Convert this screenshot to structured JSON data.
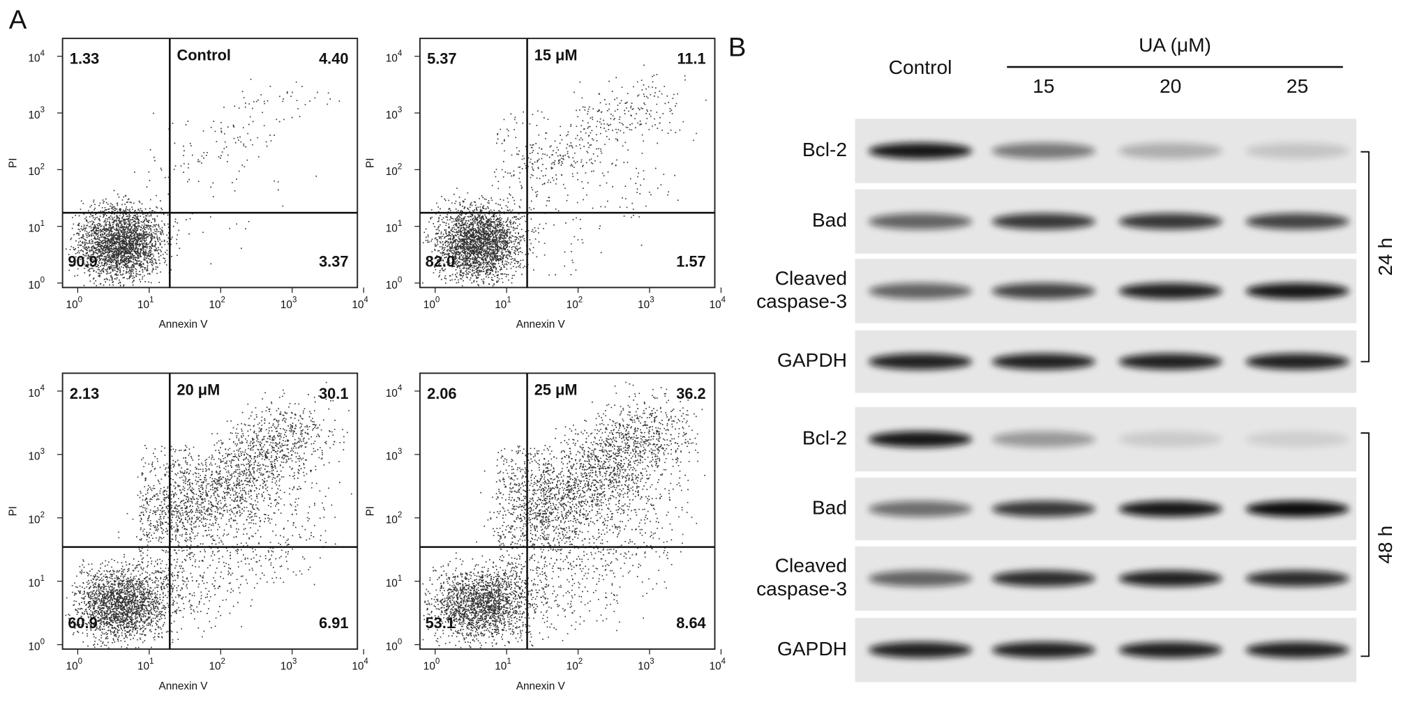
{
  "panel_a": {
    "label": "A",
    "x_label": "Annexin V",
    "y_label": "PI",
    "tick_base": "10",
    "tick_exponents": [
      "0",
      "1",
      "2",
      "3",
      "4"
    ],
    "plots": [
      {
        "title": "Control",
        "upper_left": "1.33",
        "upper_right": "4.40",
        "lower_left": "90.9",
        "lower_right": "3.37"
      },
      {
        "title": "15 μM",
        "upper_left": "5.37",
        "upper_right": "11.1",
        "lower_left": "82.0",
        "lower_right": "1.57"
      },
      {
        "title": "20 μM",
        "upper_left": "2.13",
        "upper_right": "30.1",
        "lower_left": "60.9",
        "lower_right": "6.91"
      },
      {
        "title": "25 μM",
        "upper_left": "2.06",
        "upper_right": "36.2",
        "lower_left": "53.1",
        "lower_right": "8.64"
      }
    ]
  },
  "panel_b": {
    "label": "B",
    "control": "Control",
    "treatment": "UA (μM)",
    "concentrations": [
      "15",
      "20",
      "25"
    ],
    "blocks": [
      {
        "time": "24 h",
        "rows": [
          [
            "Bcl-2"
          ],
          [
            "Bad"
          ],
          [
            "Cleaved",
            "caspase-3"
          ],
          [
            "GAPDH"
          ]
        ]
      },
      {
        "time": "48 h",
        "rows": [
          [
            "Bcl-2"
          ],
          [
            "Bad"
          ],
          [
            "Cleaved",
            "caspase-3"
          ],
          [
            "GAPDH"
          ]
        ]
      }
    ]
  }
}
